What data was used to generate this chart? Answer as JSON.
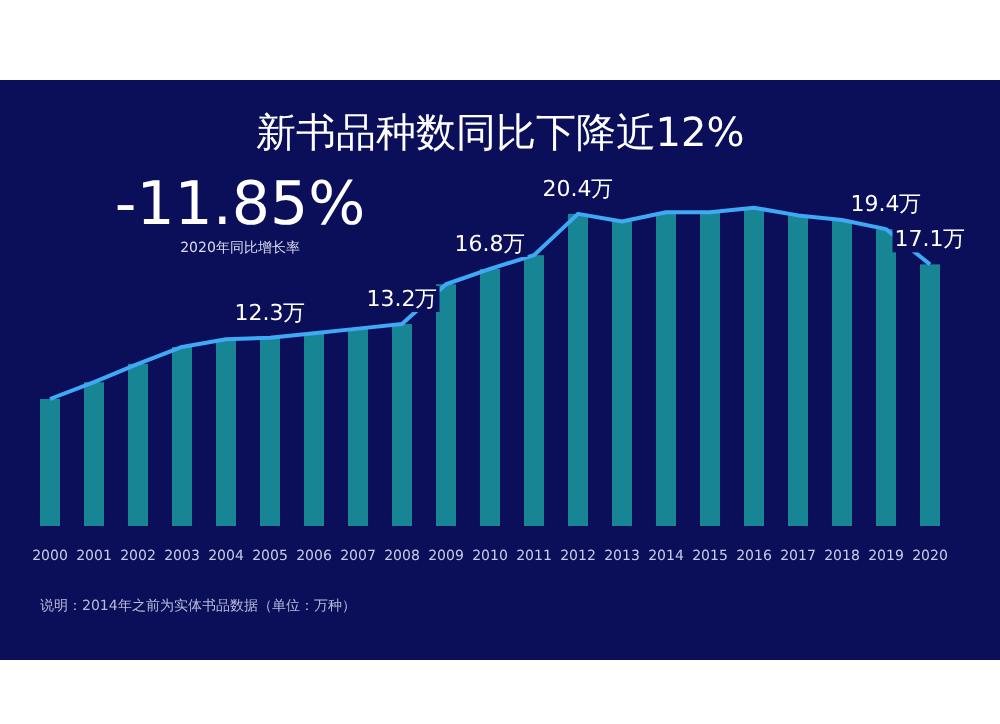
{
  "chart_data": {
    "type": "bar",
    "title": "新书品种数同比下降近12%",
    "categories": [
      "2000",
      "2001",
      "2002",
      "2003",
      "2004",
      "2005",
      "2006",
      "2007",
      "2008",
      "2009",
      "2010",
      "2011",
      "2012",
      "2013",
      "2014",
      "2015",
      "2016",
      "2017",
      "2018",
      "2019",
      "2020"
    ],
    "series": [
      {
        "color": "#1b9aa0",
        "values": [
          8.3,
          9.4,
          10.6,
          11.7,
          12.2,
          12.3,
          12.6,
          12.9,
          13.2,
          15.8,
          16.8,
          17.7,
          20.4,
          19.9,
          20.5,
          20.5,
          20.8,
          20.3,
          20.0,
          19.4,
          17.1
        ]
      },
      {
        "type": "line",
        "color": "#3fa9f5",
        "values": [
          8.3,
          9.4,
          10.6,
          11.7,
          12.2,
          12.3,
          12.6,
          12.9,
          13.2,
          15.8,
          16.8,
          17.7,
          20.4,
          19.9,
          20.5,
          20.5,
          20.8,
          20.3,
          20.0,
          19.4,
          17.1
        ],
        "value_labels": [
          null,
          null,
          null,
          null,
          null,
          "12.3万",
          null,
          null,
          "13.2万",
          null,
          "16.8万",
          null,
          "20.4万",
          null,
          null,
          null,
          null,
          null,
          null,
          "19.4万",
          "17.1万"
        ]
      }
    ],
    "tick_labels": "x",
    "annotations": [
      "-11.85%",
      "2020年同比增长率",
      "说明：2014年之前为实体书品数据（单位：万种）"
    ]
  }
}
